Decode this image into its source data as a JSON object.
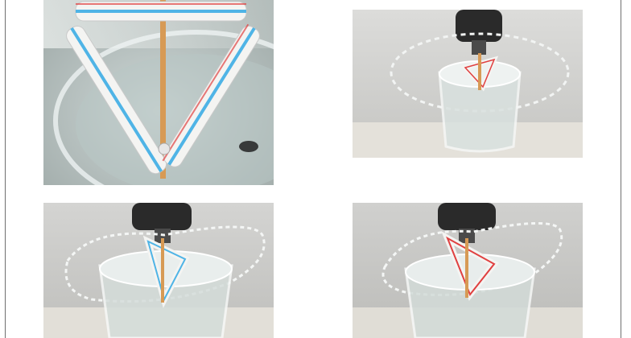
{
  "figure": {
    "photos": [
      {
        "id": "p1",
        "subject": "straw-triangle-on-skewer-above-water-bowl"
      },
      {
        "id": "p2",
        "subject": "drill-spinning-straw-triangle-in-glass-water-spray-ring"
      },
      {
        "id": "p3",
        "subject": "drill-spinning-straw-triangle-in-glass-water-spray-ring"
      },
      {
        "id": "p4",
        "subject": "drill-spinning-straw-triangle-in-glass-water-spray-ring"
      }
    ],
    "colors": {
      "straw_white": "#f4f4f2",
      "straw_blue": "#4fb4e6",
      "straw_red": "#e04040",
      "skewer": "#d79a55",
      "water": "#cfd9d8",
      "drill": "#2a2a2a",
      "background_gray": "#d6d6d4"
    }
  }
}
